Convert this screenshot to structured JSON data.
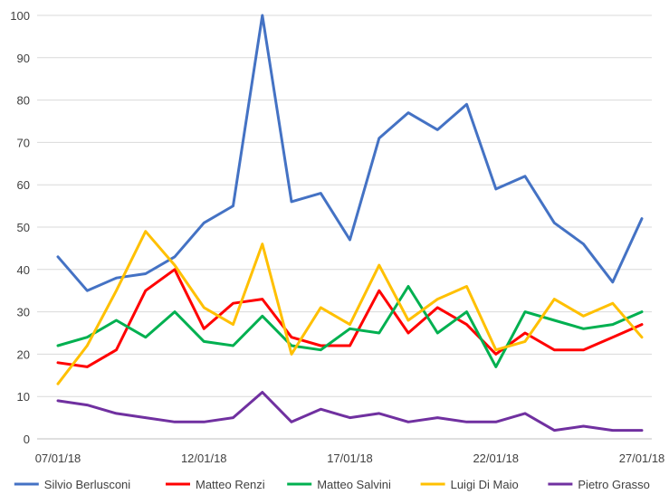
{
  "chart_data": {
    "type": "line",
    "title": "",
    "xlabel": "",
    "ylabel": "",
    "x": [
      "07/01/18",
      "08/01/18",
      "09/01/18",
      "10/01/18",
      "11/01/18",
      "12/01/18",
      "13/01/18",
      "14/01/18",
      "15/01/18",
      "16/01/18",
      "17/01/18",
      "18/01/18",
      "19/01/18",
      "20/01/18",
      "21/01/18",
      "22/01/18",
      "23/01/18",
      "24/01/18",
      "25/01/18",
      "26/01/18",
      "27/01/18"
    ],
    "x_tick_labels": [
      "07/01/18",
      "12/01/18",
      "17/01/18",
      "22/01/18",
      "27/01/18"
    ],
    "ylim": [
      0,
      100
    ],
    "y_ticks": [
      0,
      10,
      20,
      30,
      40,
      50,
      60,
      70,
      80,
      90,
      100
    ],
    "grid": true,
    "legend_position": "bottom",
    "series": [
      {
        "name": "Silvio Berlusconi",
        "color": "#4472C4",
        "values": [
          43,
          35,
          38,
          39,
          43,
          51,
          55,
          100,
          56,
          58,
          47,
          71,
          77,
          73,
          79,
          59,
          62,
          51,
          46,
          37,
          52
        ]
      },
      {
        "name": "Matteo Renzi",
        "color": "#FF0000",
        "values": [
          18,
          17,
          21,
          35,
          40,
          26,
          32,
          33,
          24,
          22,
          22,
          35,
          25,
          31,
          27,
          20,
          25,
          21,
          21,
          24,
          27
        ]
      },
      {
        "name": "Matteo Salvini",
        "color": "#00B050",
        "values": [
          22,
          24,
          28,
          24,
          30,
          23,
          22,
          29,
          22,
          21,
          26,
          25,
          36,
          25,
          30,
          17,
          30,
          28,
          26,
          27,
          30
        ]
      },
      {
        "name": "Luigi Di Maio",
        "color": "#FFC000",
        "values": [
          13,
          22,
          35,
          49,
          41,
          31,
          27,
          46,
          20,
          31,
          27,
          41,
          28,
          33,
          36,
          21,
          23,
          33,
          29,
          32,
          24
        ]
      },
      {
        "name": "Pietro Grasso",
        "color": "#7030A0",
        "values": [
          9,
          8,
          6,
          5,
          4,
          4,
          5,
          11,
          4,
          7,
          5,
          6,
          4,
          5,
          4,
          4,
          6,
          2,
          3,
          2,
          2
        ]
      }
    ]
  }
}
